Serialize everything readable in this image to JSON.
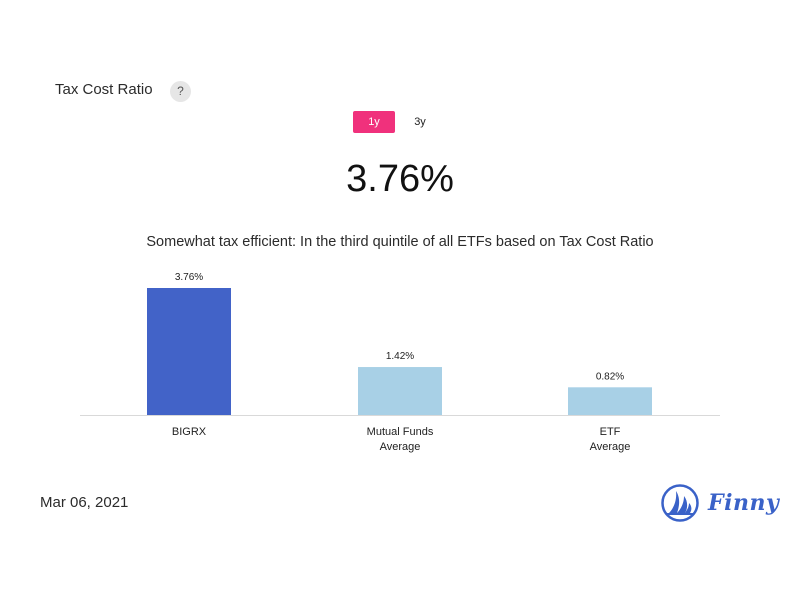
{
  "header": {
    "title": "Tax Cost Ratio",
    "help_label": "?"
  },
  "tabs": [
    {
      "label": "1y",
      "active": true
    },
    {
      "label": "3y",
      "active": false
    }
  ],
  "headline_value": "3.76%",
  "subtitle": "Somewhat tax efficient: In the third quintile of all ETFs based on Tax Cost Ratio",
  "chart_data": {
    "type": "bar",
    "categories": [
      "BIGRX",
      "Mutual Funds Average",
      "ETF Average"
    ],
    "category_lines": [
      [
        "BIGRX"
      ],
      [
        "Mutual Funds",
        "Average"
      ],
      [
        "ETF",
        "Average"
      ]
    ],
    "values": [
      3.76,
      1.42,
      0.82
    ],
    "value_labels": [
      "3.76%",
      "1.42%",
      "0.82%"
    ],
    "colors": [
      "#4263c8",
      "#a8d0e6",
      "#a8d0e6"
    ],
    "ylim": [
      0,
      3.76
    ],
    "grid": false,
    "legend": "none"
  },
  "footer": {
    "date": "Mar 06, 2021",
    "brand": "Finny",
    "brand_color": "#3a62c8"
  }
}
